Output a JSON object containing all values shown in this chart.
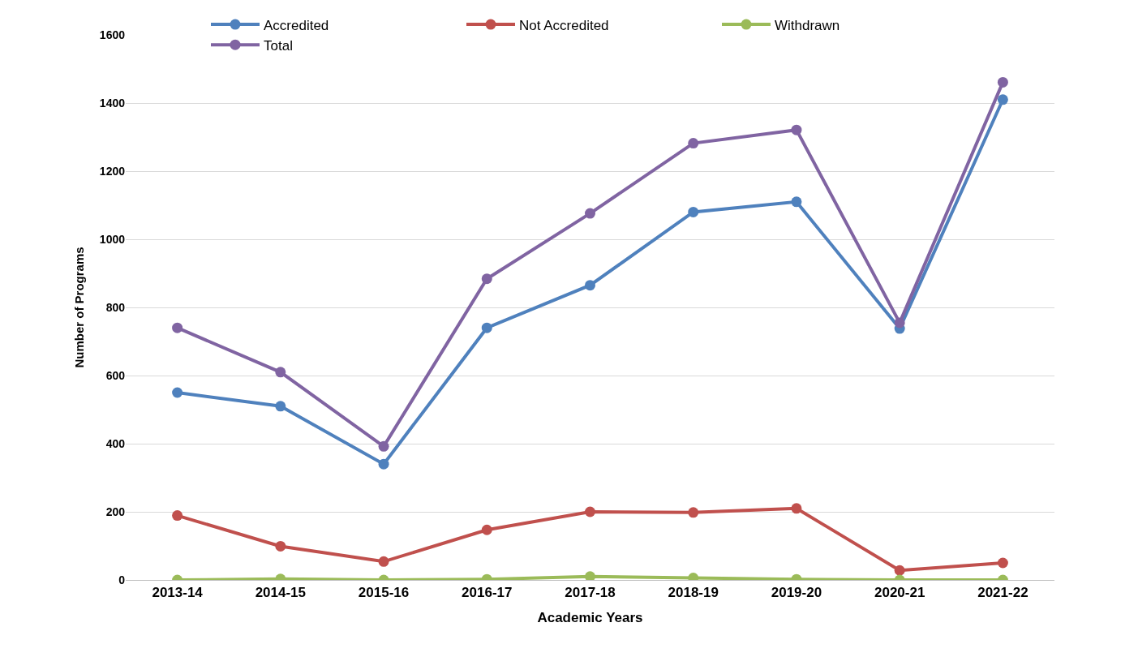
{
  "chart_data": {
    "type": "line",
    "xlabel": "Academic Years",
    "ylabel": "Number of Programs",
    "categories": [
      "2013-14",
      "2014-15",
      "2015-16",
      "2016-17",
      "2017-18",
      "2018-19",
      "2019-20",
      "2020-21",
      "2021-22"
    ],
    "series": [
      {
        "name": "Accredited",
        "color": "#4f81bd",
        "values": [
          550,
          510,
          340,
          740,
          865,
          1080,
          1110,
          738,
          1410
        ]
      },
      {
        "name": "Not Accredited",
        "color": "#c0504d",
        "values": [
          189,
          99,
          54,
          147,
          200,
          198,
          210,
          28,
          50
        ]
      },
      {
        "name": "Withdrawn",
        "color": "#9bbb59",
        "values": [
          0,
          3,
          0,
          2,
          10,
          6,
          2,
          0,
          0
        ]
      },
      {
        "name": "Total",
        "color": "#8064a2",
        "values": [
          740,
          610,
          392,
          884,
          1076,
          1282,
          1321,
          755,
          1461
        ]
      }
    ],
    "ylim": [
      0,
      1600
    ],
    "yticks": [
      0,
      200,
      400,
      600,
      800,
      1000,
      1200,
      1400,
      1600
    ],
    "grid": "y",
    "legend": "top",
    "marker": "circle",
    "line_style": "solid"
  }
}
